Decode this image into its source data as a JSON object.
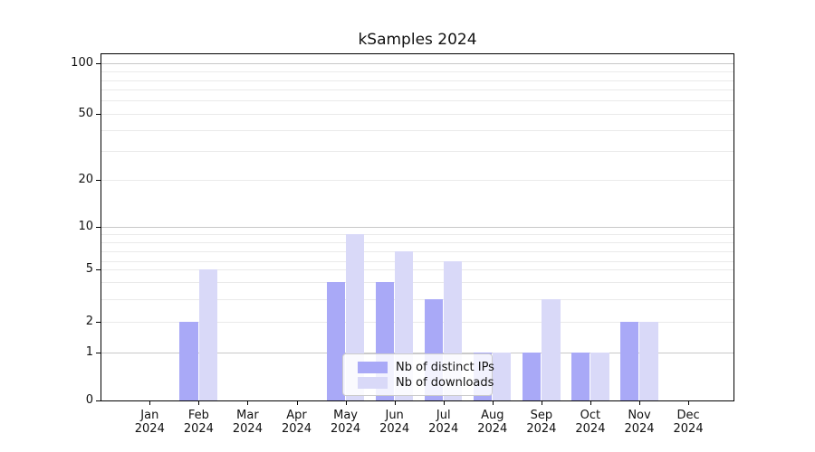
{
  "chart_data": {
    "type": "bar",
    "title": "kSamples 2024",
    "categories": [
      "Jan",
      "Feb",
      "Mar",
      "Apr",
      "May",
      "Jun",
      "Jul",
      "Aug",
      "Sep",
      "Oct",
      "Nov",
      "Dec"
    ],
    "xtick_year": "2024",
    "series": [
      {
        "name": "Nb of distinct IPs",
        "color": "#a9a9f7",
        "values": [
          0,
          2,
          0,
          0,
          4,
          4,
          3,
          1,
          1,
          1,
          2,
          0
        ]
      },
      {
        "name": "Nb of downloads",
        "color": "#d9d9f8",
        "values": [
          0,
          5,
          0,
          0,
          9,
          7,
          6,
          1,
          3,
          1,
          2,
          0
        ]
      }
    ],
    "yticks": [
      100,
      50,
      20,
      10,
      5,
      2,
      1,
      0
    ],
    "ylim": [
      0,
      112
    ],
    "yscale": "symlog",
    "grid": "both",
    "legend_position": "lower center",
    "colors": {
      "grid_major": "#c8c8c8",
      "grid_minor": "#eaeaea",
      "spine": "#000000",
      "background": "#ffffff"
    }
  }
}
